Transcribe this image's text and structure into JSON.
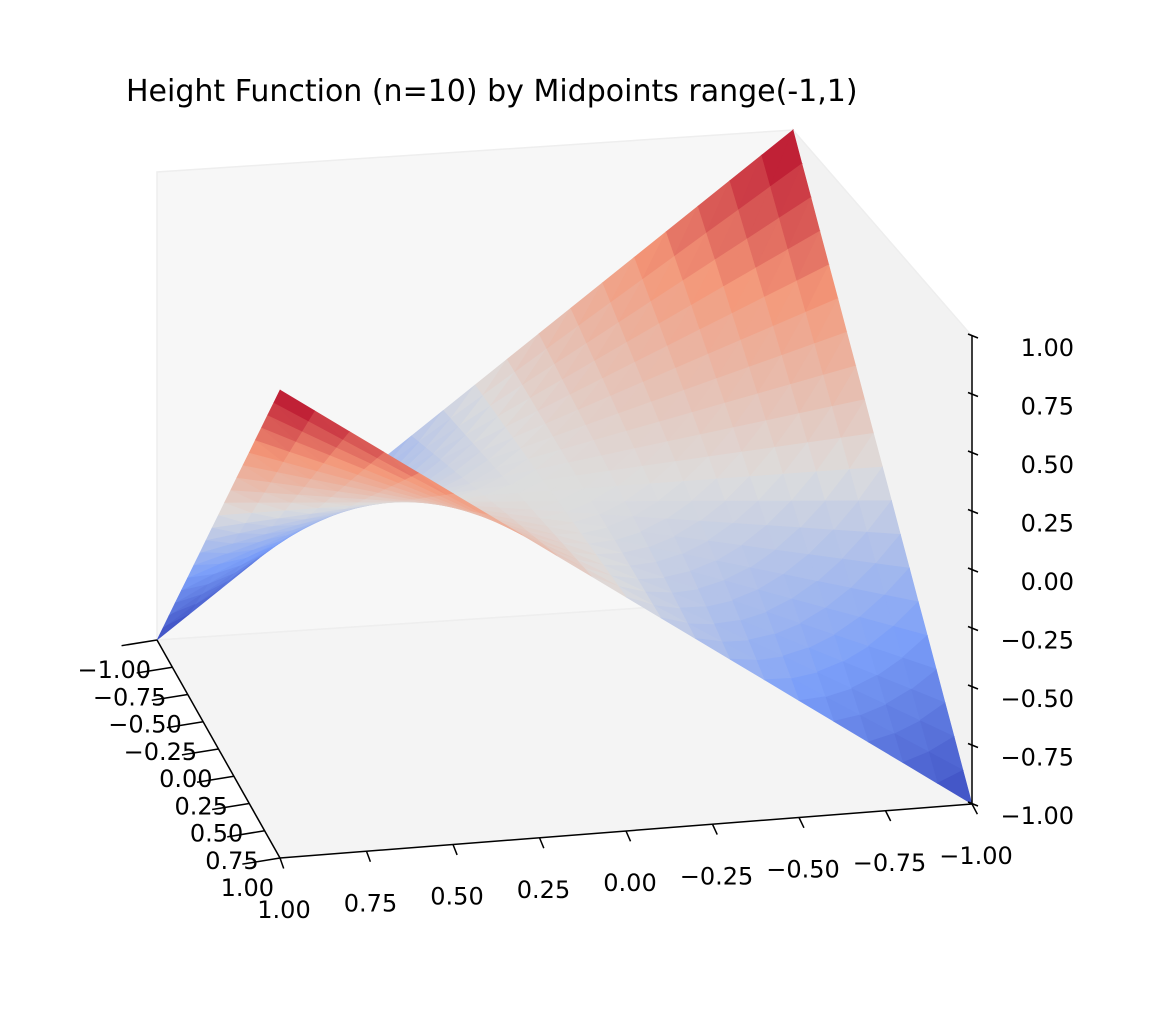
{
  "chart_data": {
    "type": "surface3d",
    "title": "Height Function (n=10) by Midpoints range(-1,1)",
    "function": "z = x*y",
    "n": 10,
    "x_range": [
      -1,
      1
    ],
    "y_range": [
      -1,
      1
    ],
    "zlim": [
      -1,
      1
    ],
    "colormap": "coolwarm",
    "colormap_low": "#3b4cc0",
    "colormap_mid": "#dddddd",
    "colormap_high": "#b40426",
    "x_ticks": [
      "1.00",
      "0.75",
      "0.50",
      "0.25",
      "0.00",
      "−0.25",
      "−0.50",
      "−0.75",
      "−1.00"
    ],
    "y_ticks": [
      "1.00",
      "0.75",
      "0.50",
      "0.25",
      "0.00",
      "−0.25",
      "−0.50",
      "−0.75",
      "−1.00"
    ],
    "z_ticks": [
      "1.00",
      "0.75",
      "0.50",
      "0.25",
      "0.00",
      "−0.25",
      "−0.50",
      "−0.75",
      "−1.00"
    ],
    "grid": false
  }
}
